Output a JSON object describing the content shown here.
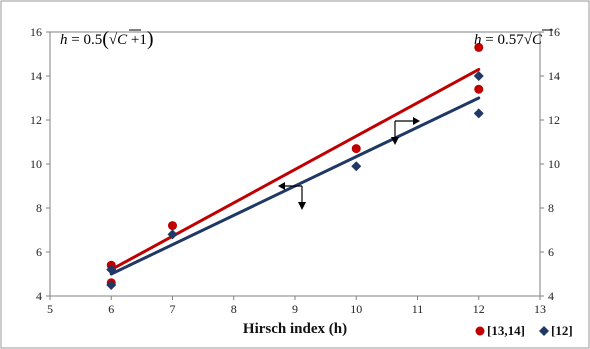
{
  "chart_data": {
    "type": "scatter",
    "xlabel": "Hirsch index (h)",
    "ylabel": "",
    "xlim": [
      5,
      13
    ],
    "ylim": [
      4,
      16
    ],
    "xticks": [
      5,
      6,
      7,
      8,
      9,
      10,
      11,
      12,
      13
    ],
    "yticks": [
      4,
      6,
      8,
      10,
      12,
      14,
      16
    ],
    "yticks_right": [
      4,
      6,
      8,
      10,
      12,
      14,
      16
    ],
    "grid": false,
    "legend_position": "bottom-right",
    "series": [
      {
        "name": "[13,14]",
        "marker": "circle",
        "color": "#c00000",
        "points": [
          {
            "x": 6,
            "y": 5.4
          },
          {
            "x": 6,
            "y": 4.6
          },
          {
            "x": 7,
            "y": 7.2
          },
          {
            "x": 10,
            "y": 10.7
          },
          {
            "x": 12,
            "y": 15.3
          },
          {
            "x": 12,
            "y": 13.4
          }
        ],
        "fit": {
          "from": [
            6,
            5.2
          ],
          "to": [
            12,
            14.3
          ],
          "color": "#c00000"
        }
      },
      {
        "name": "[12]",
        "marker": "diamond",
        "color": "#1f3864",
        "points": [
          {
            "x": 6,
            "y": 5.2
          },
          {
            "x": 6,
            "y": 4.5
          },
          {
            "x": 7,
            "y": 6.8
          },
          {
            "x": 10,
            "y": 9.9
          },
          {
            "x": 12,
            "y": 14.0
          },
          {
            "x": 12,
            "y": 12.3
          }
        ],
        "fit": {
          "from": [
            6,
            5.0
          ],
          "to": [
            12,
            13.0
          ],
          "color": "#1f3864"
        }
      }
    ],
    "annotations": {
      "left_formula": {
        "lhs": "h",
        "eq": " = 0.5",
        "open": "(",
        "root": "√",
        "arg": "C",
        "tail": " +1",
        "close": ")"
      },
      "right_formula": {
        "lhs": "h",
        "eq": " = 0.57",
        "root": "√",
        "arg": "C"
      }
    }
  }
}
